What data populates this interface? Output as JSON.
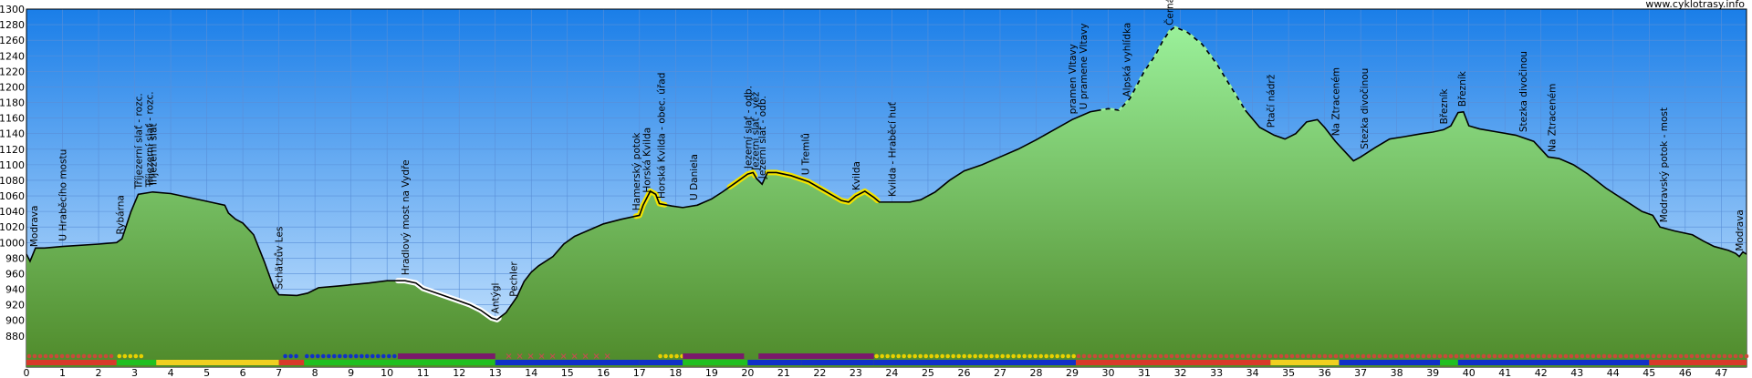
{
  "credit": "www.cyklotrasy.info",
  "colors": {
    "sky_top": "#1a7ee8",
    "sky_bottom": "#cfe8ff",
    "ground_top": "#9af09a",
    "ground_bottom": "#4f8a2a",
    "grid": "#5a8fd8",
    "profile_line": "#000000",
    "highlight_yellow": "#f4e400",
    "highlight_white": "#ffffff"
  },
  "chart_data": {
    "type": "area",
    "xlabel": "",
    "ylabel": "",
    "xlim": [
      0,
      47.7
    ],
    "ylim": [
      840,
      1300
    ],
    "x_ticks": [
      0,
      1,
      2,
      3,
      4,
      5,
      6,
      7,
      8,
      9,
      10,
      11,
      12,
      13,
      14,
      15,
      16,
      17,
      18,
      19,
      20,
      21,
      22,
      23,
      24,
      25,
      26,
      27,
      28,
      29,
      30,
      31,
      32,
      33,
      34,
      35,
      36,
      37,
      38,
      39,
      40,
      41,
      42,
      43,
      44,
      45,
      46,
      47
    ],
    "y_ticks": [
      880,
      900,
      920,
      940,
      960,
      980,
      1000,
      1020,
      1040,
      1060,
      1080,
      1100,
      1120,
      1140,
      1160,
      1180,
      1200,
      1220,
      1240,
      1260,
      1280,
      1300
    ],
    "profile": [
      [
        0,
        985
      ],
      [
        0.1,
        976
      ],
      [
        0.25,
        993
      ],
      [
        0.5,
        993
      ],
      [
        1.0,
        995
      ],
      [
        2.0,
        998
      ],
      [
        2.5,
        1000
      ],
      [
        2.65,
        1005
      ],
      [
        2.9,
        1040
      ],
      [
        3.1,
        1062
      ],
      [
        3.5,
        1065
      ],
      [
        4.0,
        1063
      ],
      [
        4.5,
        1058
      ],
      [
        5.0,
        1053
      ],
      [
        5.5,
        1048
      ],
      [
        5.6,
        1038
      ],
      [
        5.8,
        1030
      ],
      [
        6.0,
        1025
      ],
      [
        6.3,
        1010
      ],
      [
        6.6,
        975
      ],
      [
        6.85,
        943
      ],
      [
        7.0,
        933
      ],
      [
        7.5,
        932
      ],
      [
        7.8,
        935
      ],
      [
        8.1,
        942
      ],
      [
        8.6,
        944
      ],
      [
        9.5,
        948
      ],
      [
        10.0,
        951
      ],
      [
        10.5,
        951
      ],
      [
        10.8,
        948
      ],
      [
        11.0,
        941
      ],
      [
        11.5,
        933
      ],
      [
        12.0,
        925
      ],
      [
        12.3,
        920
      ],
      [
        12.6,
        913
      ],
      [
        12.9,
        903
      ],
      [
        13.05,
        901
      ],
      [
        13.3,
        910
      ],
      [
        13.6,
        930
      ],
      [
        13.8,
        950
      ],
      [
        14.0,
        962
      ],
      [
        14.2,
        970
      ],
      [
        14.6,
        982
      ],
      [
        14.9,
        998
      ],
      [
        15.2,
        1008
      ],
      [
        15.6,
        1016
      ],
      [
        16.0,
        1024
      ],
      [
        16.5,
        1030
      ],
      [
        17.0,
        1035
      ],
      [
        17.1,
        1048
      ],
      [
        17.3,
        1066
      ],
      [
        17.45,
        1062
      ],
      [
        17.55,
        1050
      ],
      [
        17.9,
        1047
      ],
      [
        18.2,
        1045
      ],
      [
        18.6,
        1048
      ],
      [
        19.0,
        1056
      ],
      [
        19.3,
        1065
      ],
      [
        19.7,
        1078
      ],
      [
        20.0,
        1088
      ],
      [
        20.15,
        1090
      ],
      [
        20.25,
        1082
      ],
      [
        20.4,
        1075
      ],
      [
        20.55,
        1090
      ],
      [
        20.8,
        1090
      ],
      [
        21.2,
        1086
      ],
      [
        21.7,
        1078
      ],
      [
        22.0,
        1070
      ],
      [
        22.3,
        1062
      ],
      [
        22.6,
        1054
      ],
      [
        22.8,
        1052
      ],
      [
        23.0,
        1060
      ],
      [
        23.25,
        1066
      ],
      [
        23.5,
        1058
      ],
      [
        23.65,
        1052
      ],
      [
        24.2,
        1052
      ],
      [
        24.5,
        1052
      ],
      [
        24.8,
        1055
      ],
      [
        25.2,
        1065
      ],
      [
        25.6,
        1080
      ],
      [
        26.0,
        1092
      ],
      [
        26.5,
        1100
      ],
      [
        27.0,
        1110
      ],
      [
        27.5,
        1120
      ],
      [
        28.0,
        1132
      ],
      [
        28.5,
        1145
      ],
      [
        29.0,
        1158
      ],
      [
        29.5,
        1168
      ],
      [
        30.0,
        1172
      ],
      [
        30.3,
        1170
      ],
      [
        30.6,
        1185
      ],
      [
        31.0,
        1220
      ],
      [
        31.3,
        1240
      ],
      [
        31.5,
        1258
      ],
      [
        31.7,
        1272
      ],
      [
        31.85,
        1277
      ],
      [
        32.2,
        1270
      ],
      [
        32.6,
        1255
      ],
      [
        33.0,
        1230
      ],
      [
        33.4,
        1200
      ],
      [
        33.8,
        1170
      ],
      [
        34.2,
        1148
      ],
      [
        34.6,
        1138
      ],
      [
        34.9,
        1133
      ],
      [
        35.2,
        1140
      ],
      [
        35.5,
        1155
      ],
      [
        35.8,
        1158
      ],
      [
        36.0,
        1148
      ],
      [
        36.3,
        1130
      ],
      [
        36.6,
        1115
      ],
      [
        36.8,
        1105
      ],
      [
        37.0,
        1110
      ],
      [
        37.4,
        1122
      ],
      [
        37.8,
        1133
      ],
      [
        38.2,
        1136
      ],
      [
        38.7,
        1140
      ],
      [
        39.0,
        1142
      ],
      [
        39.3,
        1145
      ],
      [
        39.5,
        1150
      ],
      [
        39.7,
        1167
      ],
      [
        39.85,
        1168
      ],
      [
        40.0,
        1150
      ],
      [
        40.3,
        1146
      ],
      [
        40.8,
        1142
      ],
      [
        41.3,
        1138
      ],
      [
        41.8,
        1130
      ],
      [
        42.2,
        1110
      ],
      [
        42.5,
        1108
      ],
      [
        42.9,
        1100
      ],
      [
        43.3,
        1088
      ],
      [
        43.8,
        1070
      ],
      [
        44.3,
        1055
      ],
      [
        44.8,
        1040
      ],
      [
        45.1,
        1035
      ],
      [
        45.3,
        1020
      ],
      [
        45.7,
        1015
      ],
      [
        46.2,
        1010
      ],
      [
        46.5,
        1002
      ],
      [
        46.8,
        995
      ],
      [
        47.2,
        990
      ],
      [
        47.4,
        986
      ],
      [
        47.5,
        982
      ],
      [
        47.6,
        988
      ],
      [
        47.7,
        985
      ]
    ],
    "highlights": [
      {
        "color": "white",
        "from": 10.3,
        "to": 13.1
      },
      {
        "color": "yellow",
        "from": 16.9,
        "to": 17.7
      },
      {
        "color": "yellow",
        "from": 19.5,
        "to": 20.2
      },
      {
        "color": "yellow",
        "from": 20.55,
        "to": 23.6
      }
    ],
    "dashed_segments": [
      {
        "from": 29.8,
        "to": 33.8
      }
    ],
    "points": [
      {
        "km": 0.2,
        "label": "Modrava"
      },
      {
        "km": 1.0,
        "label": "U Hraběcího mostu"
      },
      {
        "km": 2.6,
        "label": "Rybárna"
      },
      {
        "km": 3.1,
        "label": "Tříjezerní slať - rozc."
      },
      {
        "km": 3.4,
        "label": "Tříjezerní slať - rozc."
      },
      {
        "km": 3.5,
        "label": "Tříjezerní slať"
      },
      {
        "km": 7.0,
        "label": "Schätzův Les"
      },
      {
        "km": 10.5,
        "label": "Hradlový most na Vydře"
      },
      {
        "km": 13.0,
        "label": "Antýgl"
      },
      {
        "km": 13.5,
        "label": "Pechler"
      },
      {
        "km": 16.9,
        "label": "Hamerský potok"
      },
      {
        "km": 17.2,
        "label": "Horská Kvilda"
      },
      {
        "km": 17.6,
        "label": "Horská Kvilda - obec. úřad"
      },
      {
        "km": 18.5,
        "label": "U Daniela"
      },
      {
        "km": 20.0,
        "label": "Jezerní slať - odb."
      },
      {
        "km": 20.2,
        "label": "Jezerní slať - věž"
      },
      {
        "km": 20.4,
        "label": "Jezerní slať - odb."
      },
      {
        "km": 21.6,
        "label": "U Tremlů"
      },
      {
        "km": 23.0,
        "label": "Kvilda"
      },
      {
        "km": 24.0,
        "label": "Kvilda - Hraběcí huť"
      },
      {
        "km": 29.0,
        "label": "pramen Vltavy"
      },
      {
        "km": 29.3,
        "label": "U pramene Vltavy"
      },
      {
        "km": 30.5,
        "label": "Alpská vyhlídka"
      },
      {
        "km": 31.7,
        "label": "Černá hora"
      },
      {
        "km": 34.5,
        "label": "Ptačí nádrž"
      },
      {
        "km": 36.3,
        "label": "Na Ztraceném"
      },
      {
        "km": 37.1,
        "label": "Stezka divočinou"
      },
      {
        "km": 39.3,
        "label": "Březník"
      },
      {
        "km": 39.8,
        "label": "Březník"
      },
      {
        "km": 41.5,
        "label": "Stezka divočinou"
      },
      {
        "km": 42.3,
        "label": "Na Ztraceném"
      },
      {
        "km": 45.4,
        "label": "Modravský potok - most"
      },
      {
        "km": 47.5,
        "label": "Modrava"
      }
    ],
    "route_bands": [
      {
        "row": "dots",
        "items": [
          {
            "from": 0,
            "to": 2.5,
            "color": "#c84a3a",
            "style": "dots"
          },
          {
            "from": 2.5,
            "to": 3.2,
            "color": "#e8d000",
            "style": "dots"
          },
          {
            "from": 7.1,
            "to": 7.6,
            "color": "#1030c8",
            "style": "dots"
          },
          {
            "from": 7.7,
            "to": 10.3,
            "color": "#1030c8",
            "style": "dots"
          },
          {
            "from": 10.3,
            "to": 13.0,
            "color": "#7a1a6a",
            "style": "solid"
          },
          {
            "from": 13.3,
            "to": 16.2,
            "color": "#c05050",
            "style": "crosses"
          },
          {
            "from": 17.5,
            "to": 18.2,
            "color": "#e8d000",
            "style": "dots"
          },
          {
            "from": 18.2,
            "to": 19.9,
            "color": "#7a1a6a",
            "style": "solid"
          },
          {
            "from": 20.3,
            "to": 23.5,
            "color": "#7a1a6a",
            "style": "solid"
          },
          {
            "from": 23.5,
            "to": 29.1,
            "color": "#e8d000",
            "style": "dots"
          },
          {
            "from": 29.1,
            "to": 47.7,
            "color": "#c84a3a",
            "style": "dots"
          }
        ]
      },
      {
        "row": "bars",
        "items": [
          {
            "from": 0,
            "to": 2.5,
            "color": "#d83a2a"
          },
          {
            "from": 2.5,
            "to": 3.6,
            "color": "#20c020"
          },
          {
            "from": 3.6,
            "to": 7.0,
            "color": "#f0d020"
          },
          {
            "from": 7.0,
            "to": 7.7,
            "color": "#d83a2a"
          },
          {
            "from": 7.7,
            "to": 13.0,
            "color": "#20c020"
          },
          {
            "from": 13.0,
            "to": 17.0,
            "color": "#1030c8"
          },
          {
            "from": 17.0,
            "to": 18.2,
            "color": "#1030c8"
          },
          {
            "from": 18.2,
            "to": 20.0,
            "color": "#20c020"
          },
          {
            "from": 20.0,
            "to": 21.5,
            "color": "#1030c8"
          },
          {
            "from": 21.5,
            "to": 23.5,
            "color": "#1030c8"
          },
          {
            "from": 23.5,
            "to": 29.1,
            "color": "#1030c8"
          },
          {
            "from": 29.1,
            "to": 34.5,
            "color": "#d83a2a"
          },
          {
            "from": 34.5,
            "to": 36.4,
            "color": "#f0d020"
          },
          {
            "from": 36.4,
            "to": 39.2,
            "color": "#1030c8"
          },
          {
            "from": 39.2,
            "to": 39.7,
            "color": "#20c020"
          },
          {
            "from": 39.7,
            "to": 45.0,
            "color": "#1030c8"
          },
          {
            "from": 45.0,
            "to": 47.7,
            "color": "#d83a2a"
          }
        ]
      }
    ]
  }
}
